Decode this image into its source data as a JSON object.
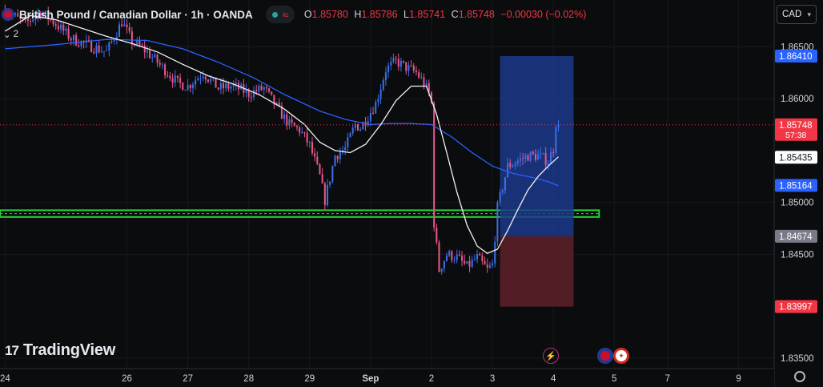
{
  "header": {
    "title": "British Pound / Canadian Dollar · 1h · OANDA",
    "indicator_count": "2",
    "ohlc": [
      {
        "k": "O",
        "v": "1.85780"
      },
      {
        "k": "H",
        "v": "1.85786"
      },
      {
        "k": "L",
        "v": "1.85741"
      },
      {
        "k": "C",
        "v": "1.85748"
      }
    ],
    "change": "−0.00030 (−0.02%)"
  },
  "currency_select": {
    "value": "CAD"
  },
  "branding": {
    "logo_text": "TradingView"
  },
  "colors": {
    "background": "#0b0c0e",
    "up": "#3c6ee8",
    "down": "#e5568a",
    "sma_fast": "#f2f2f2",
    "sma_slow": "#2962ff",
    "zone": "#21d834",
    "profit_box": "#1c3a8a",
    "loss_box": "#5a1f28"
  },
  "chart_data": {
    "type": "candlestick",
    "symbol": "GBPCAD",
    "interval": "1h",
    "ylim": [
      1.834,
      1.8695
    ],
    "y_ticks": [
      1.835,
      1.845,
      1.85,
      1.86,
      1.865
    ],
    "y_tick_labels": [
      "1.83500",
      "1.84500",
      "1.85000",
      "1.86000",
      "1.86500"
    ],
    "x_ticks": [
      {
        "label": "24",
        "t": 0
      },
      {
        "label": "26",
        "t": 48
      },
      {
        "label": "27",
        "t": 72
      },
      {
        "label": "28",
        "t": 96
      },
      {
        "label": "29",
        "t": 120
      },
      {
        "label": "Sep",
        "t": 144
      },
      {
        "label": "2",
        "t": 168
      },
      {
        "label": "3",
        "t": 192
      },
      {
        "label": "4",
        "t": 216
      },
      {
        "label": "5",
        "t": 240
      },
      {
        "label": "7",
        "t": 261
      },
      {
        "label": "9",
        "t": 289
      }
    ],
    "xlim": [
      -2,
      303
    ],
    "price_labels": [
      {
        "value": 1.8641,
        "text": "1.86410",
        "bg": "#2962ff",
        "fg": "#ffffff"
      },
      {
        "value": 1.85748,
        "text": "1.85748",
        "sub": "57:38",
        "bg": "#f23645",
        "fg": "#ffffff"
      },
      {
        "value": 1.85435,
        "text": "1.85435",
        "bg": "#ffffff",
        "fg": "#131722"
      },
      {
        "value": 1.85164,
        "text": "1.85164",
        "bg": "#2962ff",
        "fg": "#ffffff"
      },
      {
        "value": 1.84674,
        "text": "1.84674",
        "bg": "#787b86",
        "fg": "#ffffff"
      },
      {
        "value": 1.83997,
        "text": "1.83997",
        "bg": "#f23645",
        "fg": "#ffffff"
      }
    ],
    "current_price": 1.85748,
    "support_zone": {
      "top": 1.84925,
      "bottom": 1.8486,
      "t_end": 234
    },
    "position": {
      "t_start": 195,
      "t_end": 224,
      "target": 1.8641,
      "entry": 1.84674,
      "stop": 1.83997
    },
    "anchors": [
      [
        0,
        1.8685
      ],
      [
        8,
        1.8672
      ],
      [
        14,
        1.8684
      ],
      [
        20,
        1.8672
      ],
      [
        26,
        1.8658
      ],
      [
        32,
        1.8652
      ],
      [
        40,
        1.8645
      ],
      [
        46,
        1.8674
      ],
      [
        50,
        1.8655
      ],
      [
        56,
        1.8645
      ],
      [
        62,
        1.863
      ],
      [
        68,
        1.8615
      ],
      [
        72,
        1.8612
      ],
      [
        78,
        1.8625
      ],
      [
        84,
        1.861
      ],
      [
        90,
        1.8612
      ],
      [
        96,
        1.8605
      ],
      [
        102,
        1.861
      ],
      [
        108,
        1.8588
      ],
      [
        112,
        1.8575
      ],
      [
        116,
        1.857
      ],
      [
        120,
        1.8555
      ],
      [
        124,
        1.8525
      ],
      [
        126,
        1.8502
      ],
      [
        130,
        1.8545
      ],
      [
        134,
        1.8552
      ],
      [
        138,
        1.8575
      ],
      [
        140,
        1.8572
      ],
      [
        146,
        1.8595
      ],
      [
        150,
        1.8628
      ],
      [
        154,
        1.8636
      ],
      [
        158,
        1.863
      ],
      [
        162,
        1.8625
      ],
      [
        165,
        1.8615
      ],
      [
        167,
        1.8605
      ],
      [
        168,
        1.8595
      ],
      [
        169,
        1.848
      ],
      [
        171,
        1.8435
      ],
      [
        174,
        1.845
      ],
      [
        178,
        1.8447
      ],
      [
        182,
        1.8438
      ],
      [
        186,
        1.8447
      ],
      [
        190,
        1.8435
      ],
      [
        192,
        1.844
      ],
      [
        194,
        1.8495
      ],
      [
        198,
        1.8535
      ],
      [
        202,
        1.854
      ],
      [
        206,
        1.8545
      ],
      [
        210,
        1.8545
      ],
      [
        214,
        1.854
      ],
      [
        216,
        1.8552
      ],
      [
        217,
        1.8577
      ],
      [
        218,
        1.85748
      ]
    ],
    "sma_fast": [
      [
        0,
        1.8665
      ],
      [
        10,
        1.868
      ],
      [
        20,
        1.8676
      ],
      [
        30,
        1.8668
      ],
      [
        40,
        1.866
      ],
      [
        50,
        1.8653
      ],
      [
        60,
        1.8645
      ],
      [
        70,
        1.8633
      ],
      [
        80,
        1.8622
      ],
      [
        90,
        1.8614
      ],
      [
        100,
        1.8604
      ],
      [
        110,
        1.859
      ],
      [
        118,
        1.8575
      ],
      [
        124,
        1.8558
      ],
      [
        130,
        1.855
      ],
      [
        136,
        1.8548
      ],
      [
        142,
        1.8556
      ],
      [
        148,
        1.8575
      ],
      [
        154,
        1.8598
      ],
      [
        160,
        1.8612
      ],
      [
        166,
        1.8612
      ],
      [
        170,
        1.8585
      ],
      [
        174,
        1.8548
      ],
      [
        178,
        1.851
      ],
      [
        182,
        1.8478
      ],
      [
        186,
        1.8458
      ],
      [
        190,
        1.8451
      ],
      [
        194,
        1.8455
      ],
      [
        198,
        1.8473
      ],
      [
        202,
        1.8493
      ],
      [
        206,
        1.8512
      ],
      [
        210,
        1.8525
      ],
      [
        214,
        1.8535
      ],
      [
        218,
        1.8544
      ]
    ],
    "sma_slow": [
      [
        0,
        1.8648
      ],
      [
        20,
        1.8652
      ],
      [
        40,
        1.8657
      ],
      [
        56,
        1.8656
      ],
      [
        70,
        1.8648
      ],
      [
        84,
        1.8635
      ],
      [
        98,
        1.862
      ],
      [
        110,
        1.8604
      ],
      [
        124,
        1.8588
      ],
      [
        134,
        1.858
      ],
      [
        144,
        1.8575
      ],
      [
        152,
        1.8576
      ],
      [
        160,
        1.8576
      ],
      [
        168,
        1.8575
      ],
      [
        176,
        1.8563
      ],
      [
        184,
        1.8548
      ],
      [
        192,
        1.8535
      ],
      [
        200,
        1.8528
      ],
      [
        208,
        1.8524
      ],
      [
        214,
        1.852
      ],
      [
        218,
        1.8516
      ]
    ]
  }
}
